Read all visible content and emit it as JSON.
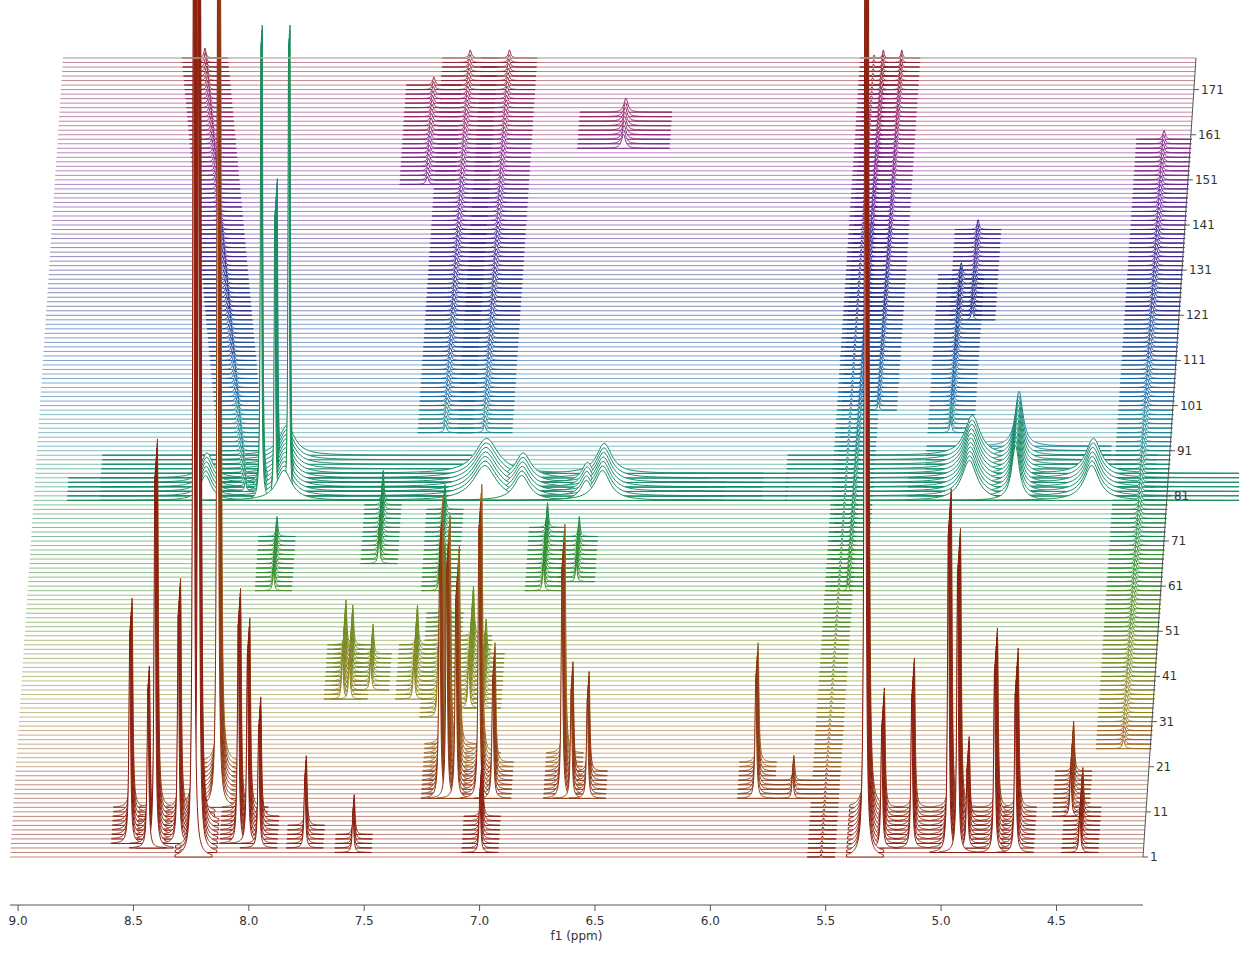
{
  "chart_data": {
    "type": "stacked_spectra",
    "x_label": "f1 (ppm)",
    "xlim": [
      9.035,
      4.125
    ],
    "xticks": [
      {
        "value": 9,
        "label": "9.0"
      },
      {
        "value": 8.5,
        "label": "8.5"
      },
      {
        "value": 8,
        "label": "8.0"
      },
      {
        "value": 7.5,
        "label": "7.5"
      },
      {
        "value": 7,
        "label": "7.0"
      },
      {
        "value": 6.5,
        "label": "6.5"
      },
      {
        "value": 6,
        "label": "6.0"
      },
      {
        "value": 5.5,
        "label": "5.5"
      },
      {
        "value": 5,
        "label": "5.0"
      },
      {
        "value": 4.5,
        "label": "4.5"
      }
    ],
    "ylim": [
      1,
      178
    ],
    "yticks": [
      1,
      11,
      21,
      31,
      41,
      51,
      61,
      71,
      81,
      91,
      101,
      111,
      121,
      131,
      141,
      151,
      161,
      171
    ],
    "colors": [
      "#8a1c0c",
      "#8c3510",
      "#9a6220",
      "#8c8420",
      "#6e8a1e",
      "#4a8a20",
      "#2a8a2c",
      "#1a8a4c",
      "#168a6c",
      "#1a8290",
      "#1a66a2",
      "#1c4896",
      "#222c86",
      "#3e2290",
      "#5e2294",
      "#7e2288",
      "#8e2264",
      "#8e2434"
    ],
    "peaks": [
      {
        "ppm": 8.24,
        "from": 1,
        "to": 12,
        "height": 950,
        "width": 0.004
      },
      {
        "ppm": 8.22,
        "from": 2,
        "to": 9,
        "height": 900,
        "width": 0.004
      },
      {
        "ppm": 8.15,
        "from": 12,
        "to": 22,
        "height": 820,
        "width": 0.004
      },
      {
        "ppm": 8.52,
        "from": 4,
        "to": 12,
        "height": 210,
        "width": 0.004
      },
      {
        "ppm": 8.41,
        "from": 3,
        "to": 12,
        "height": 370,
        "width": 0.004
      },
      {
        "ppm": 8.44,
        "from": 3,
        "to": 8,
        "height": 160,
        "width": 0.004
      },
      {
        "ppm": 8.31,
        "from": 4,
        "to": 12,
        "height": 230,
        "width": 0.004
      },
      {
        "ppm": 8.05,
        "from": 4,
        "to": 12,
        "height": 220,
        "width": 0.004
      },
      {
        "ppm": 8.01,
        "from": 4,
        "to": 12,
        "height": 190,
        "width": 0.004
      },
      {
        "ppm": 7.96,
        "from": 3,
        "to": 10,
        "height": 120,
        "width": 0.004
      },
      {
        "ppm": 7.76,
        "from": 3,
        "to": 8,
        "height": 70,
        "width": 0.004
      },
      {
        "ppm": 7.55,
        "from": 2,
        "to": 6,
        "height": 40,
        "width": 0.004
      },
      {
        "ppm": 7.19,
        "from": 14,
        "to": 26,
        "height": 250,
        "width": 0.004
      },
      {
        "ppm": 7.16,
        "from": 14,
        "to": 26,
        "height": 230,
        "width": 0.004
      },
      {
        "ppm": 7.12,
        "from": 14,
        "to": 26,
        "height": 200,
        "width": 0.004
      },
      {
        "ppm": 7.02,
        "from": 14,
        "to": 24,
        "height": 270,
        "width": 0.004
      },
      {
        "ppm": 7.0,
        "from": 2,
        "to": 10,
        "height": 60,
        "width": 0.004
      },
      {
        "ppm": 6.96,
        "from": 14,
        "to": 22,
        "height": 120,
        "width": 0.004
      },
      {
        "ppm": 6.66,
        "from": 14,
        "to": 24,
        "height": 230,
        "width": 0.004
      },
      {
        "ppm": 6.62,
        "from": 14,
        "to": 20,
        "height": 110,
        "width": 0.004
      },
      {
        "ppm": 6.55,
        "from": 14,
        "to": 20,
        "height": 100,
        "width": 0.004
      },
      {
        "ppm": 5.82,
        "from": 14,
        "to": 22,
        "height": 120,
        "width": 0.004
      },
      {
        "ppm": 5.66,
        "from": 14,
        "to": 18,
        "height": 25,
        "width": 0.004
      },
      {
        "ppm": 5.33,
        "from": 1,
        "to": 12,
        "height": 950,
        "width": 0.004
      },
      {
        "ppm": 5.26,
        "from": 3,
        "to": 12,
        "height": 120,
        "width": 0.004
      },
      {
        "ppm": 5.13,
        "from": 3,
        "to": 12,
        "height": 150,
        "width": 0.004
      },
      {
        "ppm": 4.97,
        "from": 2,
        "to": 12,
        "height": 320,
        "width": 0.004
      },
      {
        "ppm": 4.93,
        "from": 2,
        "to": 12,
        "height": 280,
        "width": 0.004
      },
      {
        "ppm": 4.89,
        "from": 3,
        "to": 10,
        "height": 80,
        "width": 0.004
      },
      {
        "ppm": 4.77,
        "from": 2,
        "to": 12,
        "height": 180,
        "width": 0.004
      },
      {
        "ppm": 4.68,
        "from": 2,
        "to": 12,
        "height": 160,
        "width": 0.004
      },
      {
        "ppm": 4.45,
        "from": 10,
        "to": 20,
        "height": 50,
        "width": 0.004
      },
      {
        "ppm": 4.4,
        "from": 2,
        "to": 12,
        "height": 40,
        "width": 0.004
      },
      {
        "ppm": 7.64,
        "from": 36,
        "to": 48,
        "height": 45,
        "width": 0.004
      },
      {
        "ppm": 7.61,
        "from": 36,
        "to": 48,
        "height": 40,
        "width": 0.004
      },
      {
        "ppm": 7.52,
        "from": 38,
        "to": 46,
        "height": 30,
        "width": 0.004
      },
      {
        "ppm": 7.33,
        "from": 36,
        "to": 48,
        "height": 40,
        "width": 0.004
      },
      {
        "ppm": 7.22,
        "from": 32,
        "to": 55,
        "height": 70,
        "width": 0.004
      },
      {
        "ppm": 7.09,
        "from": 34,
        "to": 50,
        "height": 50,
        "width": 0.004
      },
      {
        "ppm": 7.03,
        "from": 34,
        "to": 46,
        "height": 35,
        "width": 0.004
      },
      {
        "ppm": 7.52,
        "from": 66,
        "to": 80,
        "height": 30,
        "width": 0.004
      },
      {
        "ppm": 7.97,
        "from": 60,
        "to": 72,
        "height": 20,
        "width": 0.004
      },
      {
        "ppm": 7.25,
        "from": 60,
        "to": 78,
        "height": 25,
        "width": 0.004
      },
      {
        "ppm": 6.8,
        "from": 60,
        "to": 74,
        "height": 25,
        "width": 0.004
      },
      {
        "ppm": 6.66,
        "from": 62,
        "to": 72,
        "height": 20,
        "width": 0.004
      },
      {
        "ppm": 8.29,
        "from": 80,
        "to": 85,
        "height": 25,
        "width": 0.03
      },
      {
        "ppm": 8.05,
        "from": 80,
        "to": 84,
        "height": 480,
        "width": 0.003
      },
      {
        "ppm": 7.99,
        "from": 80,
        "to": 88,
        "height": 300,
        "width": 0.003
      },
      {
        "ppm": 7.93,
        "from": 80,
        "to": 84,
        "height": 480,
        "width": 0.003
      },
      {
        "ppm": 7.95,
        "from": 80,
        "to": 90,
        "height": 30,
        "width": 0.04
      },
      {
        "ppm": 7.08,
        "from": 80,
        "to": 86,
        "height": 35,
        "width": 0.06
      },
      {
        "ppm": 6.92,
        "from": 80,
        "to": 85,
        "height": 25,
        "width": 0.04
      },
      {
        "ppm": 6.64,
        "from": 80,
        "to": 84,
        "height": 20,
        "width": 0.03
      },
      {
        "ppm": 6.57,
        "from": 80,
        "to": 86,
        "height": 30,
        "width": 0.04
      },
      {
        "ppm": 4.98,
        "from": 80,
        "to": 90,
        "height": 40,
        "width": 0.04
      },
      {
        "ppm": 4.78,
        "from": 80,
        "to": 92,
        "height": 55,
        "width": 0.02
      },
      {
        "ppm": 4.45,
        "from": 80,
        "to": 86,
        "height": 35,
        "width": 0.04
      },
      {
        "ppm": 8.12,
        "ppm_end": 8.42,
        "from": 82,
        "to": 178,
        "height": 10,
        "width": 0.005
      },
      {
        "ppm": 7.27,
        "from": 95,
        "to": 178,
        "height": 8,
        "width": 0.006
      },
      {
        "ppm": 7.1,
        "from": 95,
        "to": 178,
        "height": 8,
        "width": 0.006
      },
      {
        "ppm": 5.48,
        "from": 60,
        "to": 178,
        "height": 8,
        "width": 0.004
      },
      {
        "ppm": 5.4,
        "from": 100,
        "to": 178,
        "height": 8,
        "width": 0.004
      },
      {
        "ppm": 4.24,
        "from": 25,
        "to": 160,
        "height": 9,
        "width": 0.006
      },
      {
        "ppm": 5.52,
        "from": 1,
        "to": 178,
        "height": 3,
        "width": 0.003
      },
      {
        "ppm": 7.42,
        "from": 150,
        "to": 172,
        "height": 8,
        "width": 0.006
      },
      {
        "ppm": 6.58,
        "from": 158,
        "to": 166,
        "height": 14,
        "width": 0.01
      },
      {
        "ppm": 5.02,
        "from": 120,
        "to": 140,
        "height": 10,
        "width": 0.005
      },
      {
        "ppm": 5.08,
        "from": 95,
        "to": 130,
        "height": 12,
        "width": 0.005
      }
    ]
  }
}
